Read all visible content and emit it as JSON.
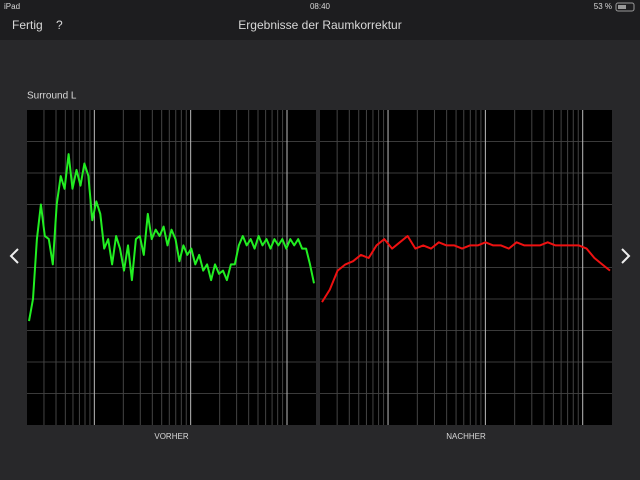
{
  "status_bar": {
    "device": "iPad",
    "time": "08:40",
    "battery": "53 %"
  },
  "nav": {
    "done": "Fertig",
    "help": "?",
    "title": "Ergebnisse der Raumkorrektur"
  },
  "section_label": "Surround L",
  "chart_data": [
    {
      "type": "line",
      "title": "VORHER",
      "color": "#22ee22",
      "ylim": [
        0,
        10
      ],
      "grid": true,
      "values": [
        3.3,
        4.0,
        5.9,
        7.0,
        6.0,
        5.9,
        5.1,
        7.0,
        7.9,
        7.5,
        8.6,
        7.5,
        8.1,
        7.6,
        8.3,
        7.9,
        6.5,
        7.1,
        6.7,
        5.6,
        5.9,
        5.1,
        6.0,
        5.6,
        4.9,
        5.7,
        4.6,
        5.9,
        6.0,
        5.4,
        6.7,
        5.9,
        6.2,
        6.0,
        6.3,
        5.7,
        6.2,
        5.9,
        5.2,
        5.7,
        5.4,
        5.6,
        5.1,
        5.4,
        4.9,
        5.1,
        4.6,
        5.1,
        4.8,
        4.9,
        4.6,
        5.1,
        5.1,
        5.7,
        6.0,
        5.7,
        5.9,
        5.6,
        6.0,
        5.7,
        5.9,
        5.6,
        5.9,
        5.7,
        5.9,
        5.6,
        5.9,
        5.7,
        5.9,
        5.6,
        5.6,
        5.1,
        4.5
      ]
    },
    {
      "type": "line",
      "title": "NACHHER",
      "color": "#ee1111",
      "ylim": [
        0,
        10
      ],
      "grid": true,
      "values": [
        3.9,
        4.3,
        4.9,
        5.1,
        5.2,
        5.4,
        5.3,
        5.7,
        5.9,
        5.6,
        5.8,
        6.0,
        5.6,
        5.7,
        5.6,
        5.8,
        5.7,
        5.7,
        5.6,
        5.7,
        5.7,
        5.8,
        5.7,
        5.7,
        5.6,
        5.8,
        5.7,
        5.7,
        5.7,
        5.8,
        5.7,
        5.7,
        5.7,
        5.7,
        5.6,
        5.3,
        5.1,
        4.9
      ]
    }
  ]
}
